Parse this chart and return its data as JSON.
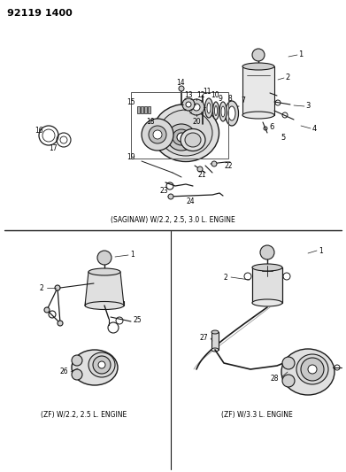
{
  "title_code": "92119 1400",
  "background_color": "#ffffff",
  "caption_top": "(SAGINAW) W/2.2, 2.5, 3.0 L. ENGINE",
  "caption_bottom_left": "(ZF) W/2.2, 2.5 L. ENGINE",
  "caption_bottom_right": "(ZF) W/3.3 L. ENGINE",
  "figsize": [
    3.91,
    5.33
  ],
  "dpi": 100,
  "line_color": "#1a1a1a",
  "gray_fill": "#d0d0d0"
}
